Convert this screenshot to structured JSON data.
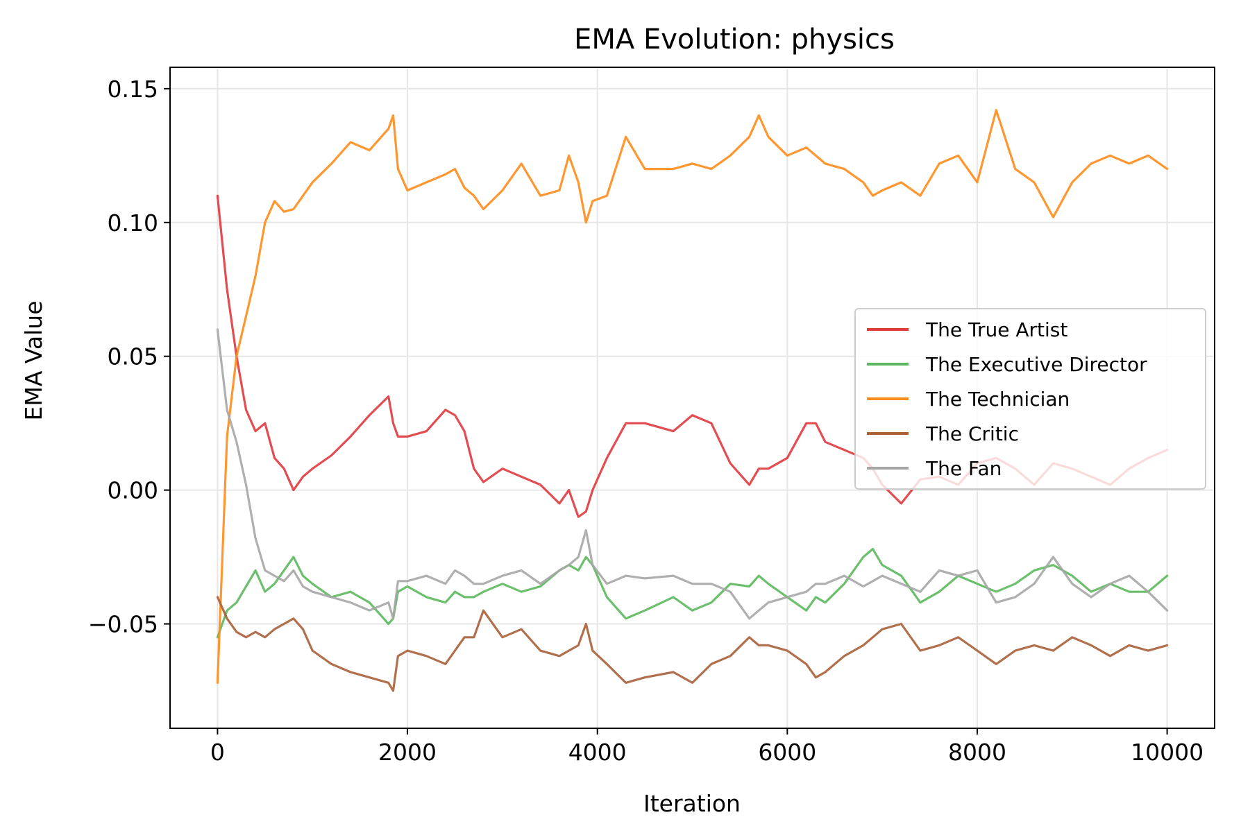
{
  "chart_data": {
    "type": "line",
    "title": "EMA Evolution: physics",
    "xlabel": "Iteration",
    "ylabel": "EMA Value",
    "xlim": [
      -500,
      10500
    ],
    "ylim": [
      -0.089,
      0.158
    ],
    "xticks": [
      0,
      2000,
      4000,
      6000,
      8000,
      10000
    ],
    "xtick_labels": [
      "0",
      "2000",
      "4000",
      "6000",
      "8000",
      "10000"
    ],
    "yticks": [
      -0.05,
      0.0,
      0.05,
      0.1,
      0.15
    ],
    "ytick_labels": [
      "−0.05",
      "0.00",
      "0.05",
      "0.10",
      "0.15"
    ],
    "grid": true,
    "legend_position": "center-right",
    "x": [
      0,
      100,
      200,
      300,
      400,
      500,
      600,
      700,
      800,
      900,
      1000,
      1200,
      1400,
      1600,
      1800,
      1850,
      1900,
      2000,
      2200,
      2400,
      2500,
      2600,
      2700,
      2800,
      3000,
      3200,
      3400,
      3600,
      3700,
      3800,
      3880,
      3950,
      4100,
      4300,
      4500,
      4800,
      5000,
      5200,
      5400,
      5600,
      5700,
      5800,
      6000,
      6200,
      6300,
      6400,
      6600,
      6800,
      6900,
      7000,
      7200,
      7400,
      7600,
      7800,
      8000,
      8200,
      8400,
      8600,
      8800,
      9000,
      9200,
      9400,
      9600,
      9800,
      10000
    ],
    "series": [
      {
        "name": "The True Artist",
        "color": "#e0393e",
        "values": [
          0.11,
          0.075,
          0.05,
          0.03,
          0.022,
          0.025,
          0.012,
          0.008,
          0.0,
          0.005,
          0.008,
          0.013,
          0.02,
          0.028,
          0.035,
          0.025,
          0.02,
          0.02,
          0.022,
          0.03,
          0.028,
          0.022,
          0.008,
          0.003,
          0.008,
          0.005,
          0.002,
          -0.005,
          0.0,
          -0.01,
          -0.008,
          0.0,
          0.012,
          0.025,
          0.025,
          0.022,
          0.028,
          0.025,
          0.01,
          0.002,
          0.008,
          0.008,
          0.012,
          0.025,
          0.025,
          0.018,
          0.015,
          0.012,
          0.008,
          0.002,
          -0.005,
          0.004,
          0.005,
          0.002,
          0.01,
          0.012,
          0.008,
          0.002,
          0.01,
          0.008,
          0.005,
          0.002,
          0.008,
          0.012,
          0.015
        ]
      },
      {
        "name": "The Executive Director",
        "color": "#5cb85c",
        "values": [
          -0.055,
          -0.045,
          -0.042,
          -0.036,
          -0.03,
          -0.038,
          -0.035,
          -0.03,
          -0.025,
          -0.032,
          -0.035,
          -0.04,
          -0.038,
          -0.042,
          -0.05,
          -0.048,
          -0.038,
          -0.036,
          -0.04,
          -0.042,
          -0.038,
          -0.04,
          -0.04,
          -0.038,
          -0.035,
          -0.038,
          -0.036,
          -0.03,
          -0.028,
          -0.03,
          -0.025,
          -0.028,
          -0.04,
          -0.048,
          -0.045,
          -0.04,
          -0.045,
          -0.042,
          -0.035,
          -0.036,
          -0.032,
          -0.035,
          -0.04,
          -0.045,
          -0.04,
          -0.042,
          -0.035,
          -0.025,
          -0.022,
          -0.028,
          -0.032,
          -0.042,
          -0.038,
          -0.032,
          -0.035,
          -0.038,
          -0.035,
          -0.03,
          -0.028,
          -0.032,
          -0.038,
          -0.035,
          -0.038,
          -0.038,
          -0.032
        ]
      },
      {
        "name": "The Technician",
        "color": "#ff8c1a",
        "values": [
          -0.072,
          0.02,
          0.05,
          0.065,
          0.08,
          0.1,
          0.108,
          0.104,
          0.105,
          0.11,
          0.115,
          0.122,
          0.13,
          0.127,
          0.135,
          0.14,
          0.12,
          0.112,
          0.115,
          0.118,
          0.12,
          0.113,
          0.11,
          0.105,
          0.112,
          0.122,
          0.11,
          0.112,
          0.125,
          0.115,
          0.1,
          0.108,
          0.11,
          0.132,
          0.12,
          0.12,
          0.122,
          0.12,
          0.125,
          0.132,
          0.14,
          0.132,
          0.125,
          0.128,
          0.125,
          0.122,
          0.12,
          0.115,
          0.11,
          0.112,
          0.115,
          0.11,
          0.122,
          0.125,
          0.115,
          0.142,
          0.12,
          0.115,
          0.102,
          0.115,
          0.122,
          0.125,
          0.122,
          0.125,
          0.12
        ]
      },
      {
        "name": "The Critic",
        "color": "#a9613a",
        "values": [
          -0.04,
          -0.048,
          -0.053,
          -0.055,
          -0.053,
          -0.055,
          -0.052,
          -0.05,
          -0.048,
          -0.052,
          -0.06,
          -0.065,
          -0.068,
          -0.07,
          -0.072,
          -0.075,
          -0.062,
          -0.06,
          -0.062,
          -0.065,
          -0.06,
          -0.055,
          -0.055,
          -0.045,
          -0.055,
          -0.052,
          -0.06,
          -0.062,
          -0.06,
          -0.058,
          -0.05,
          -0.06,
          -0.065,
          -0.072,
          -0.07,
          -0.068,
          -0.072,
          -0.065,
          -0.062,
          -0.055,
          -0.058,
          -0.058,
          -0.06,
          -0.065,
          -0.07,
          -0.068,
          -0.062,
          -0.058,
          -0.055,
          -0.052,
          -0.05,
          -0.06,
          -0.058,
          -0.055,
          -0.06,
          -0.065,
          -0.06,
          -0.058,
          -0.06,
          -0.055,
          -0.058,
          -0.062,
          -0.058,
          -0.06,
          -0.058
        ]
      },
      {
        "name": "The Fan",
        "color": "#a6a6a6",
        "values": [
          0.06,
          0.03,
          0.018,
          0.002,
          -0.018,
          -0.03,
          -0.032,
          -0.034,
          -0.03,
          -0.036,
          -0.038,
          -0.04,
          -0.042,
          -0.045,
          -0.042,
          -0.048,
          -0.034,
          -0.034,
          -0.032,
          -0.035,
          -0.03,
          -0.032,
          -0.035,
          -0.035,
          -0.032,
          -0.03,
          -0.035,
          -0.03,
          -0.028,
          -0.025,
          -0.015,
          -0.028,
          -0.035,
          -0.032,
          -0.033,
          -0.032,
          -0.035,
          -0.035,
          -0.038,
          -0.048,
          -0.045,
          -0.042,
          -0.04,
          -0.038,
          -0.035,
          -0.035,
          -0.032,
          -0.036,
          -0.034,
          -0.032,
          -0.035,
          -0.038,
          -0.03,
          -0.032,
          -0.03,
          -0.042,
          -0.04,
          -0.035,
          -0.025,
          -0.035,
          -0.04,
          -0.035,
          -0.032,
          -0.038,
          -0.045
        ]
      }
    ]
  }
}
